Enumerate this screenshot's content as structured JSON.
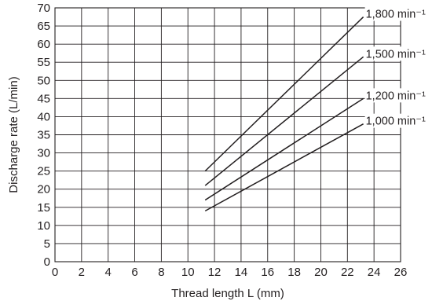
{
  "chart_data": {
    "type": "line",
    "title": "",
    "xlabel": "Thread length L (mm)",
    "ylabel": "Discharge rate (L/min)",
    "xlim": [
      0,
      26
    ],
    "ylim": [
      0,
      70
    ],
    "x_ticks": [
      0,
      2,
      4,
      6,
      8,
      10,
      12,
      14,
      16,
      18,
      20,
      22,
      24,
      26
    ],
    "y_ticks": [
      0,
      5,
      10,
      15,
      20,
      25,
      30,
      35,
      40,
      45,
      50,
      55,
      60,
      65,
      70
    ],
    "grid": true,
    "legend": "inline-right",
    "series": [
      {
        "name": "1,800 min⁻¹",
        "x": [
          11.3,
          23.2
        ],
        "values": [
          25,
          67.5
        ]
      },
      {
        "name": "1,500 min⁻¹",
        "x": [
          11.3,
          23.2
        ],
        "values": [
          21,
          56.5
        ]
      },
      {
        "name": "1,200 min⁻¹",
        "x": [
          11.3,
          23.2
        ],
        "values": [
          17,
          45
        ]
      },
      {
        "name": "1,000 min⁻¹",
        "x": [
          11.3,
          23.2
        ],
        "values": [
          14,
          38
        ]
      }
    ]
  }
}
